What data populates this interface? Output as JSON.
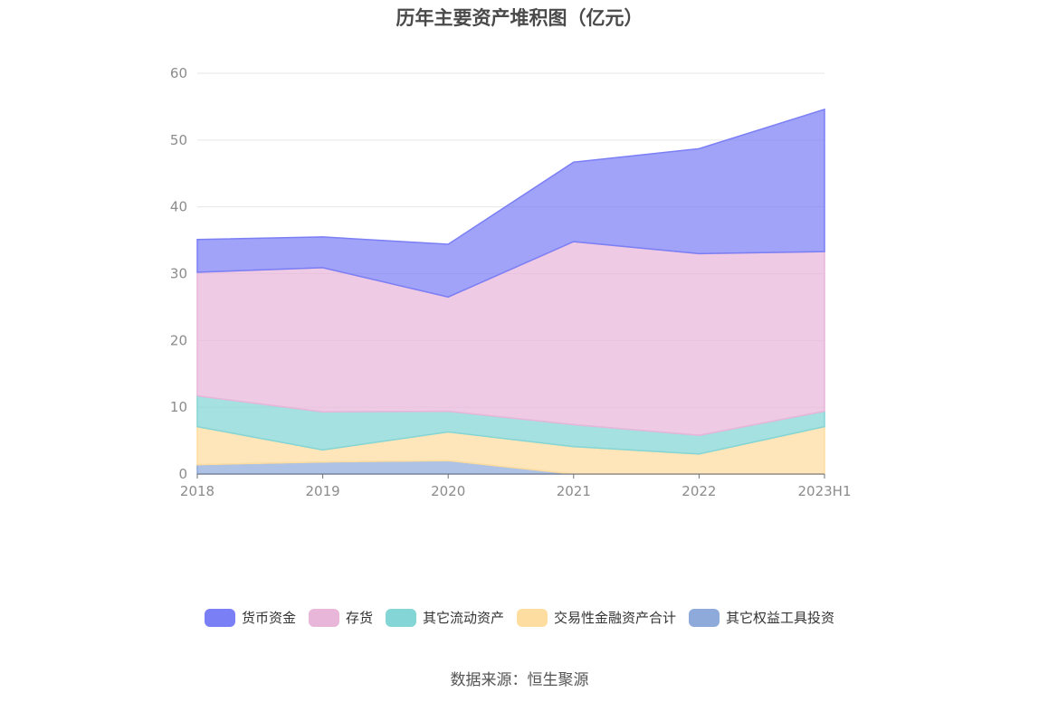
{
  "chart_data": {
    "type": "area",
    "stacked": true,
    "title": "历年主要资产堆积图（亿元）",
    "categories": [
      "2018",
      "2019",
      "2020",
      "2021",
      "2022",
      "2023H1"
    ],
    "ylim": [
      0,
      60
    ],
    "yticks": [
      0,
      10,
      20,
      30,
      40,
      50,
      60
    ],
    "grid": true,
    "legend_position": "bottom",
    "series": [
      {
        "name": "其它权益工具投资",
        "color": "#8eaadb",
        "values": [
          1.4,
          1.8,
          2.0,
          0.0,
          0.0,
          0.0
        ]
      },
      {
        "name": "交易性金融资产合计",
        "color": "#fddda0",
        "values": [
          5.7,
          1.8,
          4.3,
          4.1,
          3.0,
          7.1
        ]
      },
      {
        "name": "其它流动资产",
        "color": "#84d6d6",
        "values": [
          4.6,
          5.7,
          3.1,
          3.3,
          2.8,
          2.3
        ]
      },
      {
        "name": "存货",
        "color": "#e8b6d9",
        "values": [
          18.5,
          21.6,
          17.1,
          27.4,
          27.2,
          23.9
        ]
      },
      {
        "name": "货币资金",
        "color": "#7b7ff5",
        "values": [
          4.9,
          4.6,
          7.9,
          11.9,
          15.7,
          21.3
        ]
      }
    ],
    "source": "数据来源：恒生聚源"
  }
}
